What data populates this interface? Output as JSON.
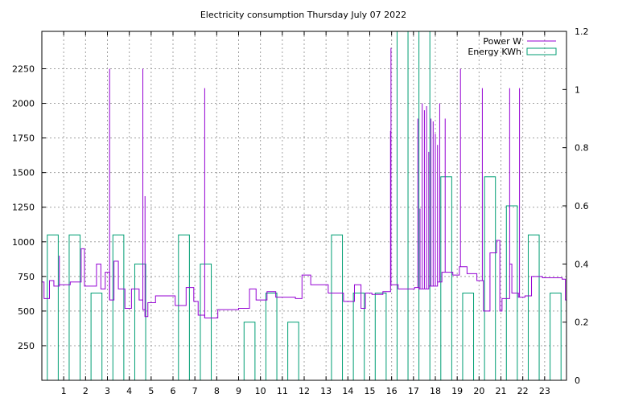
{
  "chart_data": {
    "type": "line",
    "title": "Electricity consumption Thursday July 07 2022",
    "xlabel": "",
    "ylabel": "",
    "y2label": "",
    "xlim": [
      0,
      24
    ],
    "ylim": [
      0,
      2520
    ],
    "y2lim": [
      0,
      1.2
    ],
    "x_ticks": [
      1,
      2,
      3,
      4,
      5,
      6,
      7,
      8,
      9,
      10,
      11,
      12,
      13,
      14,
      15,
      16,
      17,
      18,
      19,
      20,
      21,
      22,
      23
    ],
    "y_ticks": [
      250,
      500,
      750,
      1000,
      1250,
      1500,
      1750,
      2000,
      2250
    ],
    "y2_ticks": [
      "0",
      "0.2",
      "0.4",
      "0.6",
      "0.8",
      "1",
      "1.2"
    ],
    "y2_tick_values": [
      0,
      0.2,
      0.4,
      0.6,
      0.8,
      1,
      1.2
    ],
    "grid": true,
    "legend_position": "top-right",
    "colors": {
      "power": "#9400d3",
      "energy": "#009e73"
    },
    "series": [
      {
        "name": "Power W",
        "axis": "y",
        "style": "step",
        "points": [
          [
            0,
            710
          ],
          [
            0.1,
            590
          ],
          [
            0.35,
            720
          ],
          [
            0.55,
            680
          ],
          [
            0.8,
            690
          ],
          [
            1.3,
            710
          ],
          [
            1.8,
            950
          ],
          [
            1.95,
            680
          ],
          [
            2.5,
            840
          ],
          [
            2.7,
            660
          ],
          [
            2.9,
            780
          ],
          [
            3.1,
            580
          ],
          [
            3.3,
            860
          ],
          [
            3.5,
            660
          ],
          [
            3.8,
            520
          ],
          [
            4.1,
            660
          ],
          [
            4.45,
            580
          ],
          [
            4.62,
            510
          ],
          [
            4.72,
            460
          ],
          [
            4.85,
            560
          ],
          [
            5.2,
            610
          ],
          [
            6.1,
            540
          ],
          [
            6.6,
            670
          ],
          [
            6.95,
            570
          ],
          [
            7.15,
            470
          ],
          [
            7.45,
            450
          ],
          [
            8.05,
            510
          ],
          [
            9.0,
            520
          ],
          [
            9.5,
            660
          ],
          [
            9.8,
            580
          ],
          [
            10.3,
            640
          ],
          [
            10.7,
            600
          ],
          [
            11.6,
            590
          ],
          [
            11.9,
            760
          ],
          [
            12.3,
            690
          ],
          [
            13.1,
            630
          ],
          [
            13.8,
            570
          ],
          [
            14.3,
            690
          ],
          [
            14.6,
            520
          ],
          [
            14.8,
            630
          ],
          [
            15.1,
            620
          ],
          [
            15.6,
            640
          ],
          [
            15.95,
            690
          ],
          [
            16.3,
            660
          ],
          [
            17.05,
            670
          ],
          [
            17.25,
            660
          ],
          [
            17.7,
            680
          ],
          [
            18.1,
            710
          ],
          [
            18.3,
            780
          ],
          [
            18.8,
            760
          ],
          [
            19.1,
            820
          ],
          [
            19.45,
            770
          ],
          [
            19.9,
            720
          ],
          [
            20.2,
            500
          ],
          [
            20.5,
            920
          ],
          [
            20.8,
            1010
          ],
          [
            20.95,
            500
          ],
          [
            21.05,
            590
          ],
          [
            21.4,
            840
          ],
          [
            21.5,
            630
          ],
          [
            21.8,
            600
          ],
          [
            22.1,
            610
          ],
          [
            22.4,
            750
          ],
          [
            22.9,
            740
          ],
          [
            23.8,
            730
          ],
          [
            23.95,
            580
          ],
          [
            24,
            580
          ]
        ],
        "spikes": [
          [
            0.8,
            900
          ],
          [
            3.1,
            2250
          ],
          [
            4.62,
            2250
          ],
          [
            4.72,
            1330
          ],
          [
            7.45,
            2110
          ],
          [
            15.95,
            1800
          ],
          [
            15.97,
            2400
          ],
          [
            17.2,
            1890
          ],
          [
            17.3,
            1240
          ],
          [
            17.4,
            2000
          ],
          [
            17.5,
            1950
          ],
          [
            17.6,
            1980
          ],
          [
            17.7,
            1650
          ],
          [
            17.8,
            1890
          ],
          [
            17.9,
            1870
          ],
          [
            18.0,
            1780
          ],
          [
            18.1,
            1700
          ],
          [
            18.2,
            2000
          ],
          [
            18.45,
            1890
          ],
          [
            19.15,
            2250
          ],
          [
            20.15,
            2110
          ],
          [
            21.4,
            2110
          ],
          [
            21.85,
            2110
          ]
        ]
      },
      {
        "name": "Energy KWh",
        "axis": "y2",
        "style": "boxes",
        "points": [
          [
            0,
            0.5
          ],
          [
            1,
            0.5
          ],
          [
            2,
            0.3
          ],
          [
            3,
            0.5
          ],
          [
            4,
            0.4
          ],
          [
            5,
            0.0
          ],
          [
            6,
            0.5
          ],
          [
            7,
            0.4
          ],
          [
            8,
            0.0
          ],
          [
            9,
            0.2
          ],
          [
            10,
            0.3
          ],
          [
            11,
            0.2
          ],
          [
            12,
            0.0
          ],
          [
            13,
            0.5
          ],
          [
            14,
            0.3
          ],
          [
            15,
            0.3
          ],
          [
            16,
            1.2
          ],
          [
            17,
            1.2
          ],
          [
            18,
            0.7
          ],
          [
            19,
            0.3
          ],
          [
            20,
            0.7
          ],
          [
            21,
            0.6
          ],
          [
            22,
            0.5
          ],
          [
            23,
            0.3
          ]
        ]
      }
    ]
  }
}
